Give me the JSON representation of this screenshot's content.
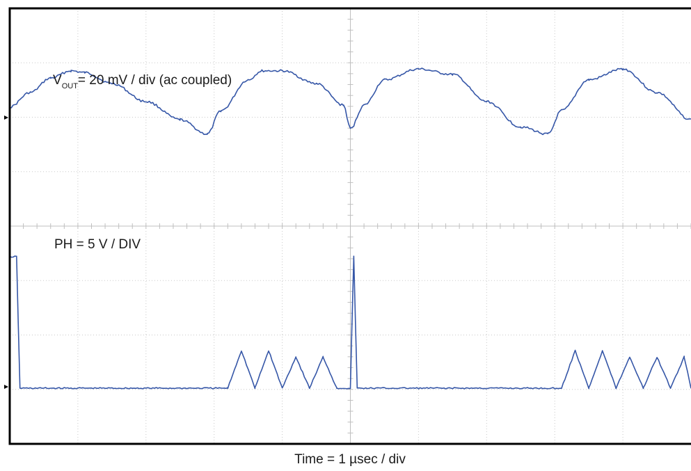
{
  "chart_data": {
    "type": "line",
    "title": "",
    "xlabel": "Time = 1 µsec / div",
    "xlim": [
      0,
      10
    ],
    "grid": true,
    "divisions": {
      "x": 10,
      "y": 8
    },
    "colors": {
      "trace": "#3556a7",
      "frame": "#000000",
      "grid": "#c8c8c8"
    },
    "series": [
      {
        "name": "VOUT",
        "label_main": "V",
        "label_sub": "OUT",
        "label_rest": "= 20 mV / div (ac coupled)",
        "units_per_div": "20 mV",
        "x": [
          0.0,
          0.3,
          0.6,
          0.9,
          1.1,
          1.5,
          2.0,
          2.5,
          2.9,
          3.1,
          3.5,
          3.7,
          4.0,
          4.5,
          4.9,
          5.0,
          5.2,
          5.5,
          6.0,
          6.5,
          7.0,
          7.5,
          7.9,
          8.1,
          8.5,
          9.0,
          9.5,
          10.0
        ],
        "y": [
          7,
          15,
          23,
          27,
          26,
          20,
          10,
          0,
          -8,
          5,
          22,
          27,
          27,
          20,
          8,
          -5,
          8,
          22,
          28,
          25,
          10,
          -4,
          -8,
          5,
          22,
          28,
          15,
          0
        ],
        "y_unit": "mV"
      },
      {
        "name": "PH",
        "label": "PH = 5 V / DIV",
        "units_per_div": "5 V",
        "x": [
          0.0,
          0.1,
          0.15,
          3.2,
          3.4,
          3.6,
          3.8,
          4.0,
          4.2,
          4.4,
          4.6,
          4.8,
          5.0,
          5.05,
          5.1,
          8.1,
          8.3,
          8.5,
          8.7,
          8.9,
          9.1,
          9.3,
          9.5,
          9.7,
          9.9,
          10.0
        ],
        "y": [
          10.5,
          10.5,
          0,
          0,
          3,
          0,
          3,
          0,
          2.5,
          0,
          2.5,
          0,
          0,
          10.5,
          0,
          0,
          3,
          0,
          3,
          0,
          2.5,
          0,
          2.5,
          0,
          2.5,
          0
        ],
        "y_unit": "V"
      }
    ]
  }
}
